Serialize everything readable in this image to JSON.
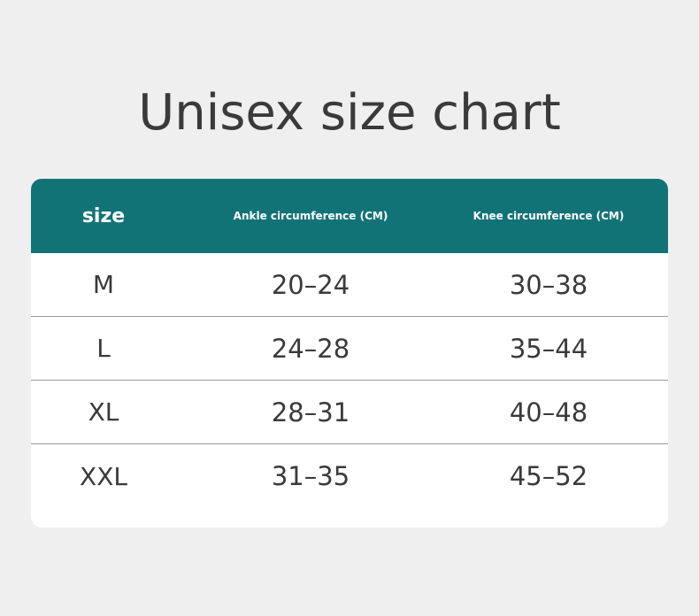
{
  "title": "Unisex size chart",
  "colors": {
    "background": "#efefef",
    "header": "#127377",
    "text": "#3a3a3a"
  },
  "table": {
    "headers": [
      "size",
      "Ankle circumference (CM)",
      "Knee circumference (CM)"
    ],
    "rows": [
      [
        "M",
        "20–24",
        "30–38"
      ],
      [
        "L",
        "24–28",
        "35–44"
      ],
      [
        "XL",
        "28–31",
        "40–48"
      ],
      [
        "XXL",
        "31–35",
        "45–52"
      ]
    ]
  }
}
